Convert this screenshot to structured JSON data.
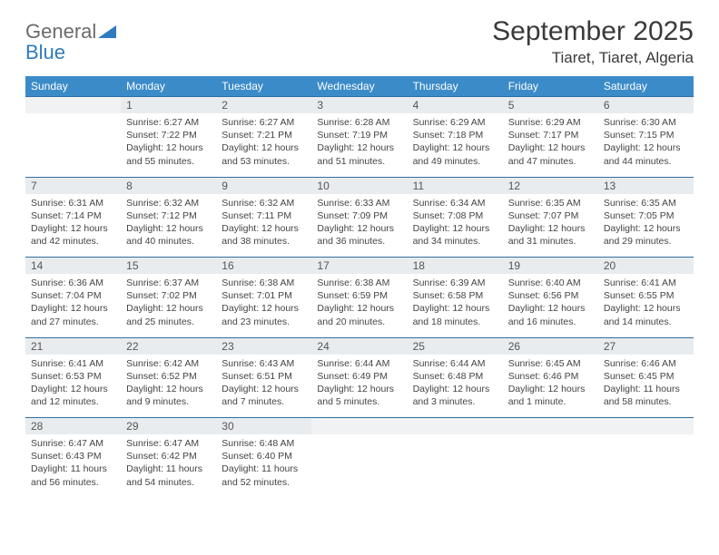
{
  "branding": {
    "word1": "General",
    "word2": "Blue",
    "triangle_color": "#2f7bbf"
  },
  "header": {
    "title": "September 2025",
    "location": "Tiaret, Tiaret, Algeria"
  },
  "colors": {
    "header_bg": "#3b8bc8",
    "header_text": "#ffffff",
    "daynum_bg": "#e9ecef",
    "row_border": "#2f6fa3",
    "body_text": "#444444"
  },
  "weekdays": [
    "Sunday",
    "Monday",
    "Tuesday",
    "Wednesday",
    "Thursday",
    "Friday",
    "Saturday"
  ],
  "weeks": [
    [
      {
        "day": "",
        "lines": []
      },
      {
        "day": "1",
        "lines": [
          "Sunrise: 6:27 AM",
          "Sunset: 7:22 PM",
          "Daylight: 12 hours",
          "and 55 minutes."
        ]
      },
      {
        "day": "2",
        "lines": [
          "Sunrise: 6:27 AM",
          "Sunset: 7:21 PM",
          "Daylight: 12 hours",
          "and 53 minutes."
        ]
      },
      {
        "day": "3",
        "lines": [
          "Sunrise: 6:28 AM",
          "Sunset: 7:19 PM",
          "Daylight: 12 hours",
          "and 51 minutes."
        ]
      },
      {
        "day": "4",
        "lines": [
          "Sunrise: 6:29 AM",
          "Sunset: 7:18 PM",
          "Daylight: 12 hours",
          "and 49 minutes."
        ]
      },
      {
        "day": "5",
        "lines": [
          "Sunrise: 6:29 AM",
          "Sunset: 7:17 PM",
          "Daylight: 12 hours",
          "and 47 minutes."
        ]
      },
      {
        "day": "6",
        "lines": [
          "Sunrise: 6:30 AM",
          "Sunset: 7:15 PM",
          "Daylight: 12 hours",
          "and 44 minutes."
        ]
      }
    ],
    [
      {
        "day": "7",
        "lines": [
          "Sunrise: 6:31 AM",
          "Sunset: 7:14 PM",
          "Daylight: 12 hours",
          "and 42 minutes."
        ]
      },
      {
        "day": "8",
        "lines": [
          "Sunrise: 6:32 AM",
          "Sunset: 7:12 PM",
          "Daylight: 12 hours",
          "and 40 minutes."
        ]
      },
      {
        "day": "9",
        "lines": [
          "Sunrise: 6:32 AM",
          "Sunset: 7:11 PM",
          "Daylight: 12 hours",
          "and 38 minutes."
        ]
      },
      {
        "day": "10",
        "lines": [
          "Sunrise: 6:33 AM",
          "Sunset: 7:09 PM",
          "Daylight: 12 hours",
          "and 36 minutes."
        ]
      },
      {
        "day": "11",
        "lines": [
          "Sunrise: 6:34 AM",
          "Sunset: 7:08 PM",
          "Daylight: 12 hours",
          "and 34 minutes."
        ]
      },
      {
        "day": "12",
        "lines": [
          "Sunrise: 6:35 AM",
          "Sunset: 7:07 PM",
          "Daylight: 12 hours",
          "and 31 minutes."
        ]
      },
      {
        "day": "13",
        "lines": [
          "Sunrise: 6:35 AM",
          "Sunset: 7:05 PM",
          "Daylight: 12 hours",
          "and 29 minutes."
        ]
      }
    ],
    [
      {
        "day": "14",
        "lines": [
          "Sunrise: 6:36 AM",
          "Sunset: 7:04 PM",
          "Daylight: 12 hours",
          "and 27 minutes."
        ]
      },
      {
        "day": "15",
        "lines": [
          "Sunrise: 6:37 AM",
          "Sunset: 7:02 PM",
          "Daylight: 12 hours",
          "and 25 minutes."
        ]
      },
      {
        "day": "16",
        "lines": [
          "Sunrise: 6:38 AM",
          "Sunset: 7:01 PM",
          "Daylight: 12 hours",
          "and 23 minutes."
        ]
      },
      {
        "day": "17",
        "lines": [
          "Sunrise: 6:38 AM",
          "Sunset: 6:59 PM",
          "Daylight: 12 hours",
          "and 20 minutes."
        ]
      },
      {
        "day": "18",
        "lines": [
          "Sunrise: 6:39 AM",
          "Sunset: 6:58 PM",
          "Daylight: 12 hours",
          "and 18 minutes."
        ]
      },
      {
        "day": "19",
        "lines": [
          "Sunrise: 6:40 AM",
          "Sunset: 6:56 PM",
          "Daylight: 12 hours",
          "and 16 minutes."
        ]
      },
      {
        "day": "20",
        "lines": [
          "Sunrise: 6:41 AM",
          "Sunset: 6:55 PM",
          "Daylight: 12 hours",
          "and 14 minutes."
        ]
      }
    ],
    [
      {
        "day": "21",
        "lines": [
          "Sunrise: 6:41 AM",
          "Sunset: 6:53 PM",
          "Daylight: 12 hours",
          "and 12 minutes."
        ]
      },
      {
        "day": "22",
        "lines": [
          "Sunrise: 6:42 AM",
          "Sunset: 6:52 PM",
          "Daylight: 12 hours",
          "and 9 minutes."
        ]
      },
      {
        "day": "23",
        "lines": [
          "Sunrise: 6:43 AM",
          "Sunset: 6:51 PM",
          "Daylight: 12 hours",
          "and 7 minutes."
        ]
      },
      {
        "day": "24",
        "lines": [
          "Sunrise: 6:44 AM",
          "Sunset: 6:49 PM",
          "Daylight: 12 hours",
          "and 5 minutes."
        ]
      },
      {
        "day": "25",
        "lines": [
          "Sunrise: 6:44 AM",
          "Sunset: 6:48 PM",
          "Daylight: 12 hours",
          "and 3 minutes."
        ]
      },
      {
        "day": "26",
        "lines": [
          "Sunrise: 6:45 AM",
          "Sunset: 6:46 PM",
          "Daylight: 12 hours",
          "and 1 minute."
        ]
      },
      {
        "day": "27",
        "lines": [
          "Sunrise: 6:46 AM",
          "Sunset: 6:45 PM",
          "Daylight: 11 hours",
          "and 58 minutes."
        ]
      }
    ],
    [
      {
        "day": "28",
        "lines": [
          "Sunrise: 6:47 AM",
          "Sunset: 6:43 PM",
          "Daylight: 11 hours",
          "and 56 minutes."
        ]
      },
      {
        "day": "29",
        "lines": [
          "Sunrise: 6:47 AM",
          "Sunset: 6:42 PM",
          "Daylight: 11 hours",
          "and 54 minutes."
        ]
      },
      {
        "day": "30",
        "lines": [
          "Sunrise: 6:48 AM",
          "Sunset: 6:40 PM",
          "Daylight: 11 hours",
          "and 52 minutes."
        ]
      },
      {
        "day": "",
        "lines": []
      },
      {
        "day": "",
        "lines": []
      },
      {
        "day": "",
        "lines": []
      },
      {
        "day": "",
        "lines": []
      }
    ]
  ]
}
